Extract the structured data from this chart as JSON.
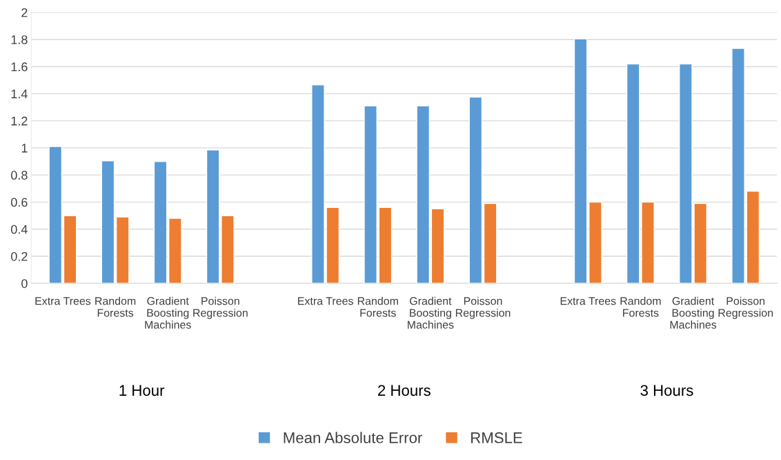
{
  "chart_data": {
    "type": "bar",
    "categories": [
      "Extra Trees",
      "Random Forests",
      "Gradient Boosting Machines",
      "Poisson Regression",
      null,
      "Extra Trees",
      "Random Forests",
      "Gradient Boosting Machines",
      "Poisson Regression",
      null,
      "Extra Trees",
      "Random Forests",
      "Gradient Boosting Machines",
      "Poisson Regression"
    ],
    "series": [
      {
        "name": "Mean Absolute Error",
        "color": "#5b9bd5",
        "values": [
          1.01,
          0.905,
          0.9,
          0.985,
          null,
          1.465,
          1.31,
          1.31,
          1.375,
          null,
          1.805,
          1.62,
          1.62,
          1.735
        ]
      },
      {
        "name": "RMSLE",
        "color": "#ed7d31",
        "values": [
          0.5,
          0.49,
          0.48,
          0.5,
          null,
          0.56,
          0.56,
          0.55,
          0.59,
          null,
          0.6,
          0.6,
          0.59,
          0.68
        ]
      }
    ],
    "annotations": [
      "1 Hour",
      "2 Hours",
      "3 Hours"
    ],
    "ylim": [
      0,
      2
    ],
    "yticks": [
      0,
      0.2,
      0.4,
      0.6,
      0.8,
      1,
      1.2,
      1.4,
      1.6,
      1.8,
      2
    ],
    "grid": "y",
    "legend": "bottom"
  }
}
